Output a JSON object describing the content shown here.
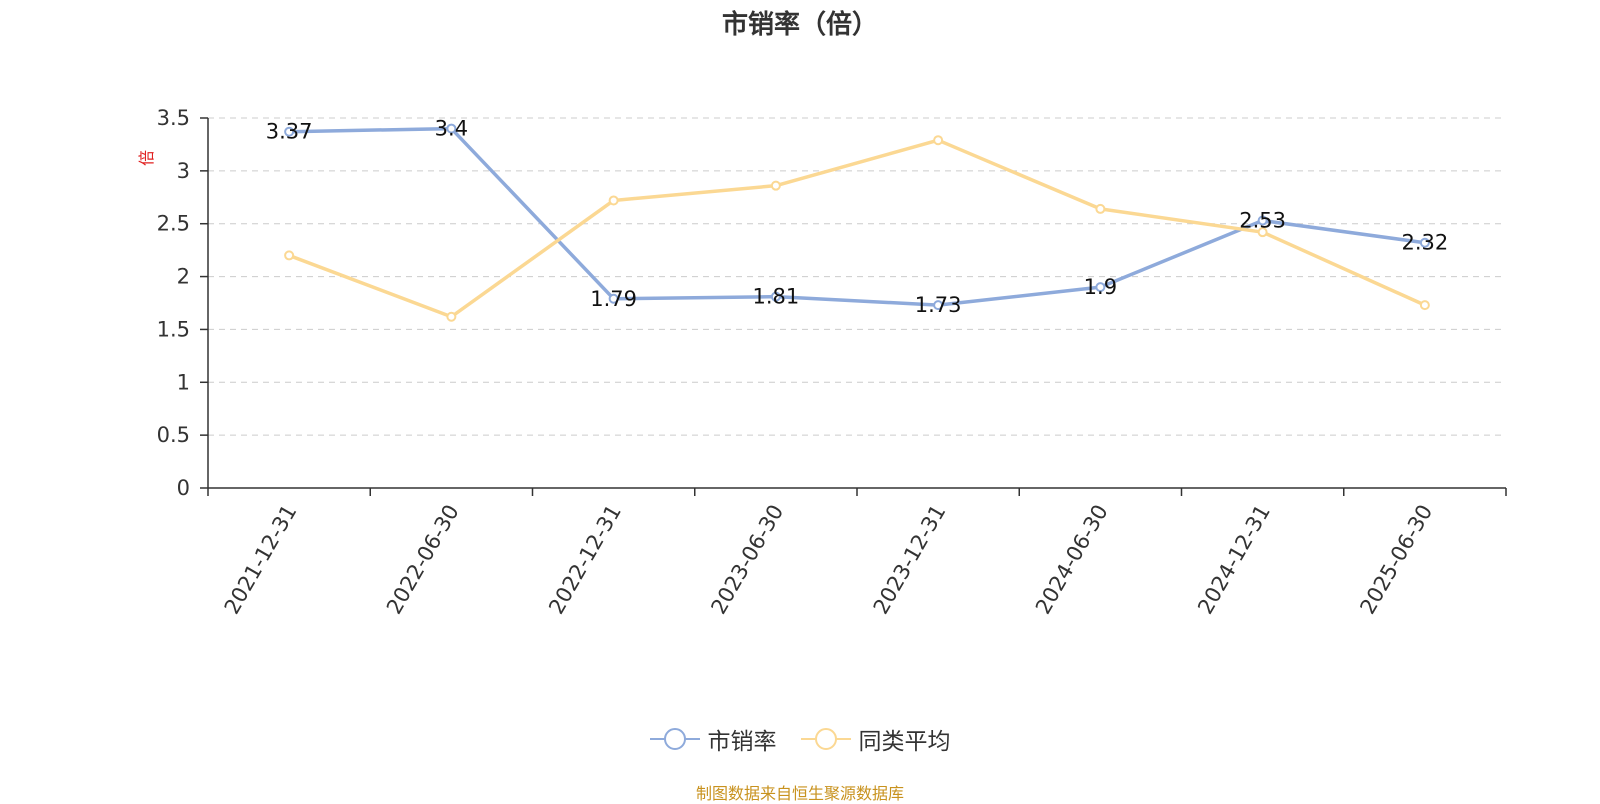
{
  "title": "市销率（倍）",
  "unit": "倍",
  "source": "制图数据来自恒生聚源数据库",
  "chart_data": {
    "type": "line",
    "title": "市销率（倍）",
    "ylabel": "倍",
    "ylim": [
      0,
      3.5
    ],
    "yticks": [
      0,
      0.5,
      1,
      1.5,
      2,
      2.5,
      3,
      3.5
    ],
    "ytick_labels": [
      "0",
      "0.5",
      "1",
      "1.5",
      "2",
      "2.5",
      "3",
      "3.5"
    ],
    "grid": true,
    "legend_position": "bottom-center",
    "categories": [
      "2021-12-31",
      "2022-06-30",
      "2022-12-31",
      "2023-06-30",
      "2023-12-31",
      "2024-06-30",
      "2024-12-31",
      "2025-06-30"
    ],
    "series": [
      {
        "name": "市销率",
        "color": "#8eaadb",
        "values": [
          3.37,
          3.4,
          1.79,
          1.81,
          1.73,
          1.9,
          2.53,
          2.32
        ],
        "labels": [
          "3.37",
          "3.4",
          "1.79",
          "1.81",
          "1.73",
          "1.9",
          "2.53",
          "2.32"
        ]
      },
      {
        "name": "同类平均",
        "color": "#fbd893",
        "values": [
          2.2,
          1.62,
          2.72,
          2.86,
          3.29,
          2.64,
          2.42,
          1.73
        ]
      }
    ]
  }
}
